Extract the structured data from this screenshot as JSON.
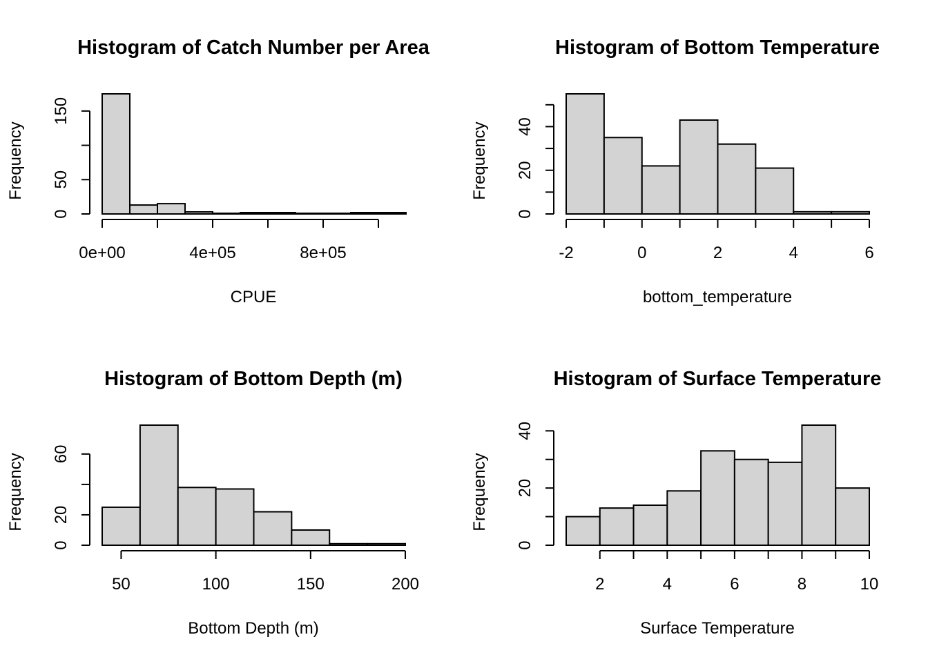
{
  "chart_data": [
    {
      "type": "bar",
      "title": "Histogram of Catch Number per Area",
      "xlabel": "CPUE",
      "ylabel": "Frequency",
      "bins": [
        {
          "from": 0,
          "to": 100000,
          "count": 175
        },
        {
          "from": 100000,
          "to": 200000,
          "count": 13
        },
        {
          "from": 200000,
          "to": 300000,
          "count": 15
        },
        {
          "from": 300000,
          "to": 400000,
          "count": 3
        },
        {
          "from": 400000,
          "to": 500000,
          "count": 1
        },
        {
          "from": 500000,
          "to": 600000,
          "count": 2
        },
        {
          "from": 600000,
          "to": 700000,
          "count": 2
        },
        {
          "from": 700000,
          "to": 800000,
          "count": 1
        },
        {
          "from": 800000,
          "to": 900000,
          "count": 1
        },
        {
          "from": 900000,
          "to": 1000000,
          "count": 2
        },
        {
          "from": 1000000,
          "to": 1100000,
          "count": 2
        }
      ],
      "xlim": [
        0,
        1100000
      ],
      "ylim": [
        0,
        175
      ],
      "x_ticks": [
        0,
        200000,
        400000,
        600000,
        800000,
        1000000
      ],
      "x_tick_labels": [
        "0e+00",
        "",
        "4e+05",
        "",
        "8e+05",
        ""
      ],
      "y_ticks": [
        0,
        50,
        100,
        150
      ],
      "y_tick_labels": [
        "0",
        "50",
        "",
        "150"
      ]
    },
    {
      "type": "bar",
      "title": "Histogram of Bottom Temperature",
      "xlabel": "bottom_temperature",
      "ylabel": "Frequency",
      "bins": [
        {
          "from": -2,
          "to": -1,
          "count": 55
        },
        {
          "from": -1,
          "to": 0,
          "count": 35
        },
        {
          "from": 0,
          "to": 1,
          "count": 22
        },
        {
          "from": 1,
          "to": 2,
          "count": 43
        },
        {
          "from": 2,
          "to": 3,
          "count": 32
        },
        {
          "from": 3,
          "to": 4,
          "count": 21
        },
        {
          "from": 4,
          "to": 5,
          "count": 1
        },
        {
          "from": 5,
          "to": 6,
          "count": 1
        }
      ],
      "xlim": [
        -2,
        6
      ],
      "ylim": [
        0,
        55
      ],
      "x_ticks": [
        -2,
        -1,
        0,
        1,
        2,
        3,
        4,
        5,
        6
      ],
      "x_tick_labels": [
        "-2",
        "",
        "0",
        "",
        "2",
        "",
        "4",
        "",
        "6"
      ],
      "y_ticks": [
        0,
        10,
        20,
        30,
        40,
        50
      ],
      "y_tick_labels": [
        "0",
        "",
        "20",
        "",
        "40",
        ""
      ]
    },
    {
      "type": "bar",
      "title": "Histogram of Bottom Depth (m)",
      "xlabel": "Bottom Depth (m)",
      "ylabel": "Frequency",
      "bins": [
        {
          "from": 40,
          "to": 60,
          "count": 25
        },
        {
          "from": 60,
          "to": 80,
          "count": 79
        },
        {
          "from": 80,
          "to": 100,
          "count": 38
        },
        {
          "from": 100,
          "to": 120,
          "count": 37
        },
        {
          "from": 120,
          "to": 140,
          "count": 22
        },
        {
          "from": 140,
          "to": 160,
          "count": 10
        },
        {
          "from": 160,
          "to": 180,
          "count": 1
        },
        {
          "from": 180,
          "to": 200,
          "count": 1
        }
      ],
      "xlim": [
        40,
        200
      ],
      "ylim": [
        0,
        79
      ],
      "x_ticks": [
        50,
        100,
        150,
        200
      ],
      "x_tick_labels": [
        "50",
        "100",
        "150",
        "200"
      ],
      "y_ticks": [
        0,
        20,
        40,
        60
      ],
      "y_tick_labels": [
        "0",
        "20",
        "",
        "60"
      ]
    },
    {
      "type": "bar",
      "title": "Histogram of Surface Temperature",
      "xlabel": "Surface Temperature",
      "ylabel": "Frequency",
      "bins": [
        {
          "from": 1,
          "to": 2,
          "count": 10
        },
        {
          "from": 2,
          "to": 3,
          "count": 13
        },
        {
          "from": 3,
          "to": 4,
          "count": 14
        },
        {
          "from": 4,
          "to": 5,
          "count": 19
        },
        {
          "from": 5,
          "to": 6,
          "count": 33
        },
        {
          "from": 6,
          "to": 7,
          "count": 30
        },
        {
          "from": 7,
          "to": 8,
          "count": 29
        },
        {
          "from": 8,
          "to": 9,
          "count": 42
        },
        {
          "from": 9,
          "to": 10,
          "count": 20
        }
      ],
      "xlim": [
        1,
        10
      ],
      "ylim": [
        0,
        42
      ],
      "x_ticks": [
        2,
        3,
        4,
        5,
        6,
        7,
        8,
        9,
        10
      ],
      "x_tick_labels": [
        "2",
        "",
        "4",
        "",
        "6",
        "",
        "8",
        "",
        "10"
      ],
      "y_ticks": [
        0,
        10,
        20,
        30,
        40
      ],
      "y_tick_labels": [
        "0",
        "",
        "20",
        "",
        "40"
      ]
    }
  ],
  "colors": {
    "bar_fill": "#d3d3d3",
    "bar_stroke": "#000000",
    "axis": "#000000"
  }
}
